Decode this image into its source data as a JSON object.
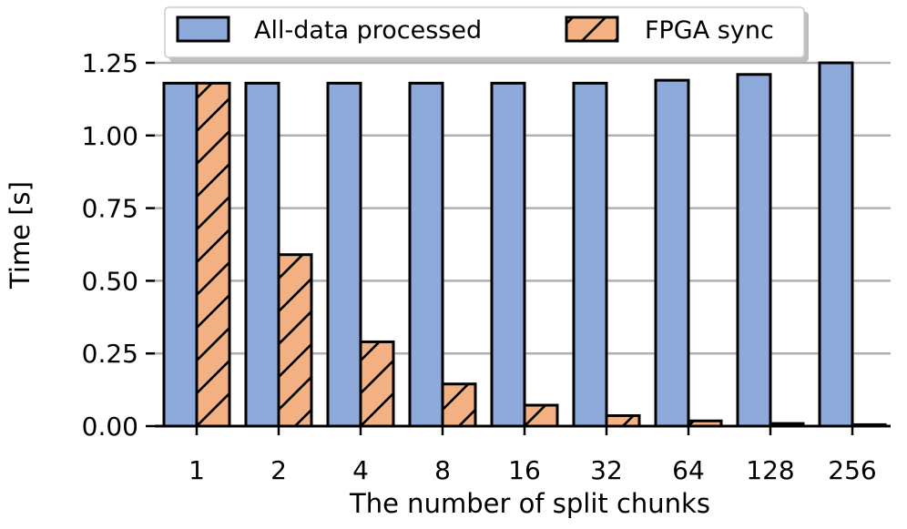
{
  "chart_data": {
    "type": "bar",
    "title": "",
    "xlabel": "The number of split chunks",
    "ylabel": "Time [s]",
    "categories": [
      "1",
      "2",
      "4",
      "8",
      "16",
      "32",
      "64",
      "128",
      "256"
    ],
    "series": [
      {
        "name": "All-data processed",
        "values": [
          1.18,
          1.18,
          1.18,
          1.18,
          1.18,
          1.18,
          1.19,
          1.21,
          1.25
        ],
        "color": "#8eaadb",
        "hatch": "none"
      },
      {
        "name": "FPGA sync",
        "values": [
          1.18,
          0.59,
          0.29,
          0.145,
          0.072,
          0.036,
          0.018,
          0.009,
          0.005
        ],
        "color": "#f4b183",
        "hatch": "diagonal"
      }
    ],
    "ylim": [
      0,
      1.25
    ],
    "yticks": [
      "0.00",
      "0.25",
      "0.50",
      "0.75",
      "1.00",
      "1.25"
    ],
    "ytick_values": [
      0,
      0.25,
      0.5,
      0.75,
      1.0,
      1.25
    ],
    "grid": "horizontal",
    "legend": "top-center",
    "gridColor": "#b0b0b0",
    "edgeColor": "#000000"
  }
}
